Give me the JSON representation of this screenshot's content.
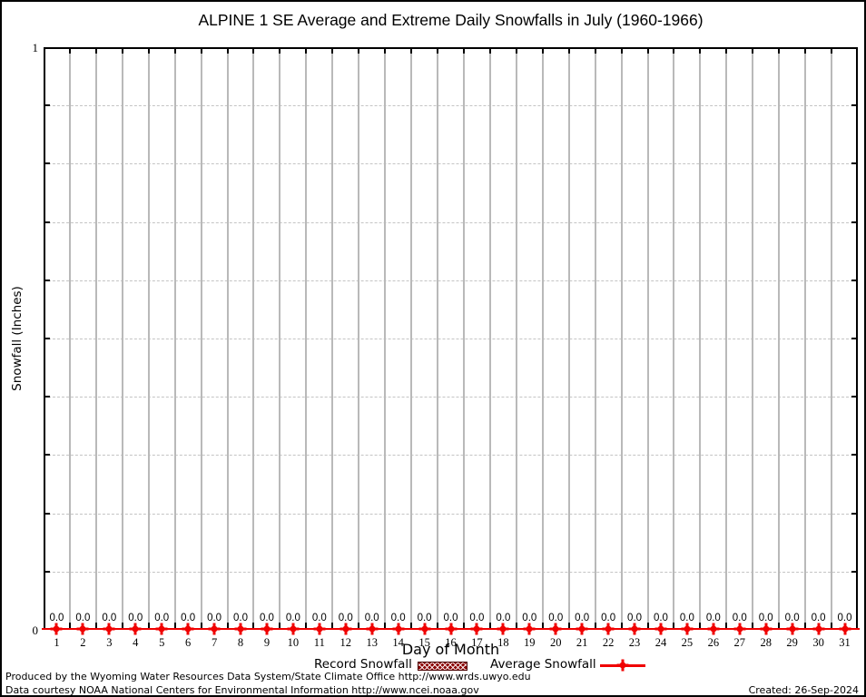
{
  "chart_data": {
    "type": "line",
    "title": "ALPINE 1 SE Average and Extreme Daily Snowfalls in July (1960-1966)",
    "xlabel": "Day of Month",
    "ylabel": "Snowfall (Inches)",
    "x": [
      1,
      2,
      3,
      4,
      5,
      6,
      7,
      8,
      9,
      10,
      11,
      12,
      13,
      14,
      15,
      16,
      17,
      18,
      19,
      20,
      21,
      22,
      23,
      24,
      25,
      26,
      27,
      28,
      29,
      30,
      31
    ],
    "ylim": [
      0,
      1
    ],
    "ytick_step": 0.1,
    "ytick_labels": [
      "0",
      "1"
    ],
    "grid": true,
    "legend_position": "bottom-center",
    "point_value_labels_shown": true,
    "series": [
      {
        "name": "Record Snowfall",
        "style": "hatched-box",
        "color": "#8b0000",
        "values": [
          0,
          0,
          0,
          0,
          0,
          0,
          0,
          0,
          0,
          0,
          0,
          0,
          0,
          0,
          0,
          0,
          0,
          0,
          0,
          0,
          0,
          0,
          0,
          0,
          0,
          0,
          0,
          0,
          0,
          0,
          0
        ]
      },
      {
        "name": "Average Snowfall",
        "style": "line-points",
        "color": "#f00000",
        "values": [
          0,
          0,
          0,
          0,
          0,
          0,
          0,
          0,
          0,
          0,
          0,
          0,
          0,
          0,
          0,
          0,
          0,
          0,
          0,
          0,
          0,
          0,
          0,
          0,
          0,
          0,
          0,
          0,
          0,
          0,
          0
        ]
      }
    ]
  },
  "footer": {
    "produced": "Produced by the Wyoming Water Resources Data System/State Climate Office http://www.wrds.uwyo.edu",
    "courtesy": "Data courtesy NOAA National Centers for Environmental Information http://www.ncei.noaa.gov",
    "created": "Created: 26-Sep-2024"
  },
  "colors": {
    "series_red": "#f00000",
    "record_fill": "#8b0000",
    "grid_vertical": "#b9b9b9",
    "grid_dashed": "#c4c4c4"
  }
}
